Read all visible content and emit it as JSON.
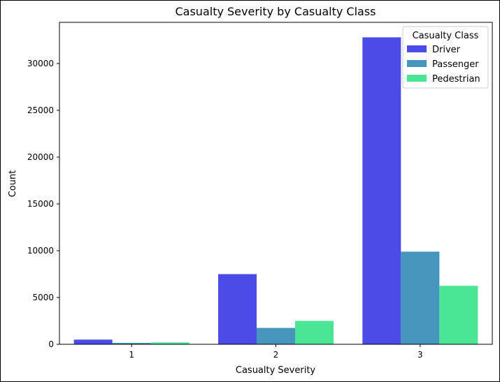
{
  "chart_data": {
    "type": "bar",
    "title": "Casualty Severity by Casualty Class",
    "xlabel": "Casualty Severity",
    "ylabel": "Count",
    "categories": [
      "1",
      "2",
      "3"
    ],
    "series": [
      {
        "name": "Driver",
        "color": "#4b4be8",
        "values": [
          500,
          7500,
          32800
        ]
      },
      {
        "name": "Passenger",
        "color": "#4595bc",
        "values": [
          150,
          1750,
          9900
        ]
      },
      {
        "name": "Pedestrian",
        "color": "#4ae696",
        "values": [
          200,
          2500,
          6250
        ]
      }
    ],
    "yticks": [
      0,
      5000,
      10000,
      15000,
      20000,
      25000,
      30000
    ],
    "ylim": [
      0,
      34400
    ],
    "legend": {
      "title": "Casualty Class",
      "position": "top-right"
    },
    "grid": false
  }
}
